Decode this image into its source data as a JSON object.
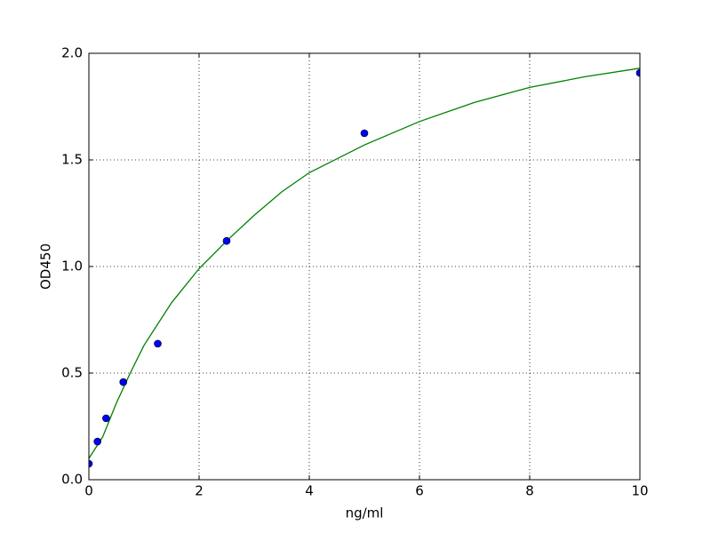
{
  "chart_data": {
    "type": "scatter",
    "x_label": "ng/ml",
    "y_label": "OD450",
    "xlim": [
      0,
      10
    ],
    "ylim": [
      0,
      2.0
    ],
    "xticks": [
      0,
      2,
      4,
      6,
      8,
      10
    ],
    "yticks": [
      {
        "value": 0,
        "label": "0.0"
      },
      0.5,
      {
        "value": 1,
        "label": "1.0"
      },
      1.5,
      {
        "value": 2,
        "label": "2.0"
      }
    ],
    "grid": true,
    "series": [
      {
        "type": "line",
        "color": "#008000",
        "x": [
          0,
          0.25,
          0.5,
          0.75,
          1,
          1.5,
          2,
          2.5,
          3,
          3.5,
          4,
          5,
          6,
          7,
          8,
          9,
          10
        ],
        "values": [
          0.1,
          0.2,
          0.36,
          0.5,
          0.63,
          0.83,
          0.99,
          1.12,
          1.24,
          1.35,
          1.44,
          1.57,
          1.68,
          1.77,
          1.84,
          1.89,
          1.93
        ]
      },
      {
        "type": "scatter",
        "color": "#0000ff",
        "x": [
          0,
          0.156,
          0.3125,
          0.625,
          1.25,
          2.5,
          5,
          10
        ],
        "values": [
          0.075,
          0.179,
          0.288,
          0.458,
          0.638,
          1.12,
          1.625,
          1.908
        ]
      }
    ]
  }
}
